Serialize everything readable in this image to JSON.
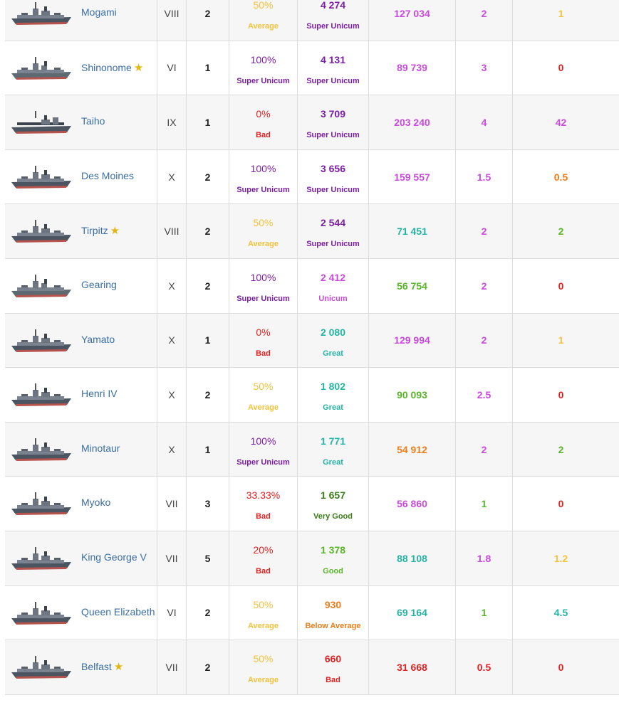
{
  "colors": {
    "super_unicum": "#7c1fa3",
    "unicum": "#c84bdb",
    "great": "#25b3a3",
    "very_good": "#3b7d1a",
    "good": "#5ab52a",
    "average": "#f3c23c",
    "below_average": "#ee7d1a",
    "bad": "#e02222",
    "ship_link": "#3a6ea5",
    "star": "#e2b714"
  },
  "rows": [
    {
      "ship": "Mogami",
      "icon": "cruiser-ship-icon",
      "star": false,
      "tier": "VIII",
      "battles": "2",
      "winrate": "50%",
      "winrate_label": "Average",
      "winrate_color": "#f3c23c",
      "wn8": "4 274",
      "wn8_label": "Super Unicum",
      "wn8_color": "#7c1fa3",
      "damage": "127 034",
      "damage_color": "#c84bdb",
      "kills": "2",
      "kills_color": "#c84bdb",
      "last": "1",
      "last_color": "#f3c23c"
    },
    {
      "ship": "Shinonome",
      "icon": "destroyer-ship-icon",
      "star": true,
      "tier": "VI",
      "battles": "1",
      "winrate": "100%",
      "winrate_label": "Super Unicum",
      "winrate_color": "#7c1fa3",
      "wn8": "4 131",
      "wn8_label": "Super Unicum",
      "wn8_color": "#7c1fa3",
      "damage": "89 739",
      "damage_color": "#c84bdb",
      "kills": "3",
      "kills_color": "#c84bdb",
      "last": "0",
      "last_color": "#e02222"
    },
    {
      "ship": "Taiho",
      "icon": "carrier-ship-icon",
      "star": false,
      "tier": "IX",
      "battles": "1",
      "winrate": "0%",
      "winrate_label": "Bad",
      "winrate_color": "#e02222",
      "wn8": "3 709",
      "wn8_label": "Super Unicum",
      "wn8_color": "#7c1fa3",
      "damage": "203 240",
      "damage_color": "#c84bdb",
      "kills": "4",
      "kills_color": "#c84bdb",
      "last": "42",
      "last_color": "#c84bdb"
    },
    {
      "ship": "Des Moines",
      "icon": "cruiser-ship-icon",
      "star": false,
      "tier": "X",
      "battles": "2",
      "winrate": "100%",
      "winrate_label": "Super Unicum",
      "winrate_color": "#7c1fa3",
      "wn8": "3 656",
      "wn8_label": "Super Unicum",
      "wn8_color": "#7c1fa3",
      "damage": "159 557",
      "damage_color": "#c84bdb",
      "kills": "1.5",
      "kills_color": "#c84bdb",
      "last": "0.5",
      "last_color": "#ee7d1a"
    },
    {
      "ship": "Tirpitz",
      "icon": "battleship-icon",
      "star": true,
      "tier": "VIII",
      "battles": "2",
      "winrate": "50%",
      "winrate_label": "Average",
      "winrate_color": "#f3c23c",
      "wn8": "2 544",
      "wn8_label": "Super Unicum",
      "wn8_color": "#7c1fa3",
      "damage": "71 451",
      "damage_color": "#25b3a3",
      "kills": "2",
      "kills_color": "#c84bdb",
      "last": "2",
      "last_color": "#5ab52a"
    },
    {
      "ship": "Gearing",
      "icon": "destroyer-ship-icon",
      "star": false,
      "tier": "X",
      "battles": "2",
      "winrate": "100%",
      "winrate_label": "Super Unicum",
      "winrate_color": "#7c1fa3",
      "wn8": "2 412",
      "wn8_label": "Unicum",
      "wn8_color": "#c84bdb",
      "damage": "56 754",
      "damage_color": "#5ab52a",
      "kills": "2",
      "kills_color": "#c84bdb",
      "last": "0",
      "last_color": "#e02222"
    },
    {
      "ship": "Yamato",
      "icon": "battleship-icon",
      "star": false,
      "tier": "X",
      "battles": "1",
      "winrate": "0%",
      "winrate_label": "Bad",
      "winrate_color": "#e02222",
      "wn8": "2 080",
      "wn8_label": "Great",
      "wn8_color": "#25b3a3",
      "damage": "129 994",
      "damage_color": "#c84bdb",
      "kills": "2",
      "kills_color": "#c84bdb",
      "last": "1",
      "last_color": "#f3c23c"
    },
    {
      "ship": "Henri IV",
      "icon": "cruiser-ship-icon",
      "star": false,
      "tier": "X",
      "battles": "2",
      "winrate": "50%",
      "winrate_label": "Average",
      "winrate_color": "#f3c23c",
      "wn8": "1 802",
      "wn8_label": "Great",
      "wn8_color": "#25b3a3",
      "damage": "90 093",
      "damage_color": "#5ab52a",
      "kills": "2.5",
      "kills_color": "#c84bdb",
      "last": "0",
      "last_color": "#e02222"
    },
    {
      "ship": "Minotaur",
      "icon": "cruiser-ship-icon",
      "star": false,
      "tier": "X",
      "battles": "1",
      "winrate": "100%",
      "winrate_label": "Super Unicum",
      "winrate_color": "#7c1fa3",
      "wn8": "1 771",
      "wn8_label": "Great",
      "wn8_color": "#25b3a3",
      "damage": "54 912",
      "damage_color": "#ee7d1a",
      "kills": "2",
      "kills_color": "#c84bdb",
      "last": "2",
      "last_color": "#5ab52a"
    },
    {
      "ship": "Myoko",
      "icon": "cruiser-ship-icon",
      "star": false,
      "tier": "VII",
      "battles": "3",
      "winrate": "33.33%",
      "winrate_label": "Bad",
      "winrate_color": "#e02222",
      "wn8": "1 657",
      "wn8_label": "Very Good",
      "wn8_color": "#3b7d1a",
      "damage": "56 860",
      "damage_color": "#c84bdb",
      "kills": "1",
      "kills_color": "#5ab52a",
      "last": "0",
      "last_color": "#e02222"
    },
    {
      "ship": "King George V",
      "icon": "battleship-icon",
      "star": false,
      "tier": "VII",
      "battles": "5",
      "winrate": "20%",
      "winrate_label": "Bad",
      "winrate_color": "#e02222",
      "wn8": "1 378",
      "wn8_label": "Good",
      "wn8_color": "#5ab52a",
      "damage": "88 108",
      "damage_color": "#25b3a3",
      "kills": "1.8",
      "kills_color": "#c84bdb",
      "last": "1.2",
      "last_color": "#f3c23c"
    },
    {
      "ship": "Queen Elizabeth",
      "icon": "battleship-icon",
      "star": false,
      "tier": "VI",
      "battles": "2",
      "winrate": "50%",
      "winrate_label": "Average",
      "winrate_color": "#f3c23c",
      "wn8": "930",
      "wn8_label": "Below Average",
      "wn8_color": "#ee7d1a",
      "damage": "69 164",
      "damage_color": "#25b3a3",
      "kills": "1",
      "kills_color": "#5ab52a",
      "last": "4.5",
      "last_color": "#25b3a3"
    },
    {
      "ship": "Belfast",
      "icon": "cruiser-ship-icon",
      "star": true,
      "tier": "VII",
      "battles": "2",
      "winrate": "50%",
      "winrate_label": "Average",
      "winrate_color": "#f3c23c",
      "wn8": "660",
      "wn8_label": "Bad",
      "wn8_color": "#e02222",
      "damage": "31 668",
      "damage_color": "#e02222",
      "kills": "0.5",
      "kills_color": "#e02222",
      "last": "0",
      "last_color": "#e02222"
    }
  ]
}
